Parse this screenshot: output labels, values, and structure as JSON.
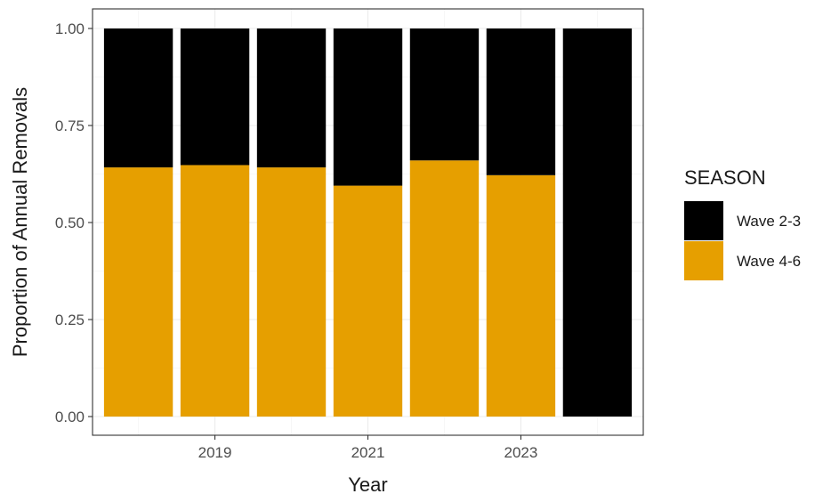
{
  "chart_data": {
    "type": "bar",
    "stacked": true,
    "xlabel": "Year",
    "ylabel": "Proportion of Annual Removals",
    "x_values": [
      2018,
      2019,
      2020,
      2021,
      2022,
      2023,
      2024
    ],
    "x_tick_labels": [
      "2019",
      "2021",
      "2023"
    ],
    "x_tick_values": [
      2019,
      2021,
      2023
    ],
    "ylim": [
      0,
      1
    ],
    "y_ticks": [
      0,
      0.25,
      0.5,
      0.75,
      1.0
    ],
    "y_tick_labels": [
      "0.00",
      "0.25",
      "0.50",
      "0.75",
      "1.00"
    ],
    "series": [
      {
        "name": "Wave 4-6",
        "color": "#E69F00",
        "values": [
          0.642,
          0.648,
          0.642,
          0.595,
          0.66,
          0.622,
          0.0
        ]
      },
      {
        "name": "Wave 2-3",
        "color": "#000000",
        "values": [
          0.358,
          0.352,
          0.358,
          0.405,
          0.34,
          0.378,
          1.0
        ]
      }
    ],
    "legend": {
      "title": "SEASON",
      "position": "right",
      "entries": [
        {
          "label": "Wave 2-3",
          "color": "#000000"
        },
        {
          "label": "Wave 4-6",
          "color": "#E69F00"
        }
      ]
    },
    "grid": true,
    "theme": "bw"
  }
}
